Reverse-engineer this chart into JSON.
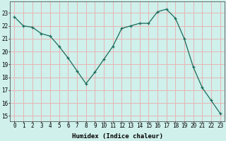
{
  "x": [
    0,
    1,
    2,
    3,
    4,
    5,
    6,
    7,
    8,
    9,
    10,
    11,
    12,
    13,
    14,
    15,
    16,
    17,
    18,
    19,
    20,
    21,
    22,
    23
  ],
  "y": [
    22.7,
    22.0,
    21.9,
    21.4,
    21.2,
    20.4,
    19.5,
    18.5,
    17.5,
    18.4,
    19.4,
    20.4,
    21.8,
    22.0,
    22.2,
    22.2,
    23.1,
    23.3,
    22.6,
    21.0,
    18.8,
    17.2,
    16.2,
    15.2
  ],
  "line_color": "#1a6b5a",
  "marker": "+",
  "bg_color": "#cff0eb",
  "grid_color": "#e8b4b4",
  "xlabel": "Humidex (Indice chaleur)",
  "ylim": [
    14.6,
    23.9
  ],
  "xlim": [
    -0.5,
    23.5
  ],
  "yticks": [
    15,
    16,
    17,
    18,
    19,
    20,
    21,
    22,
    23
  ],
  "xticks": [
    0,
    1,
    2,
    3,
    4,
    5,
    6,
    7,
    8,
    9,
    10,
    11,
    12,
    13,
    14,
    15,
    16,
    17,
    18,
    19,
    20,
    21,
    22,
    23
  ],
  "font_size_label": 6.5,
  "font_size_tick": 5.5
}
